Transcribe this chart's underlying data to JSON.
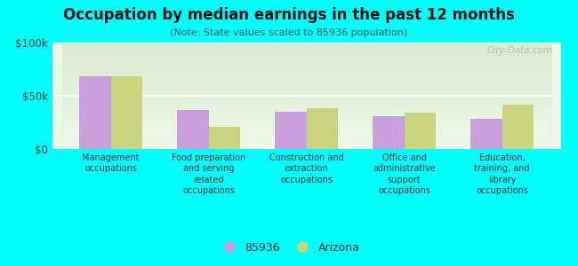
{
  "title": "Occupation by median earnings in the past 12 months",
  "subtitle": "(Note: State values scaled to 85936 population)",
  "categories": [
    "Management\noccupations",
    "Food preparation\nand serving\nrelated\noccupations",
    "Construction and\nextraction\noccupations",
    "Office and\nadministrative\nsupport\noccupations",
    "Education,\ntraining, and\nlibrary\noccupations"
  ],
  "values_85936": [
    68000,
    37000,
    35000,
    31000,
    28000
  ],
  "values_arizona": [
    68000,
    21000,
    38000,
    34000,
    42000
  ],
  "color_85936": "#c9a0dc",
  "color_arizona": "#c8d480",
  "background_color": "#00ffff",
  "plot_bg_top": "#d8ecd0",
  "plot_bg_bottom": "#eef8e8",
  "ylim": [
    0,
    100000
  ],
  "ytick_labels": [
    "$0",
    "$50k",
    "$100k"
  ],
  "legend_label_85936": "85936",
  "legend_label_arizona": "Arizona",
  "watermark": "City-Data.com"
}
